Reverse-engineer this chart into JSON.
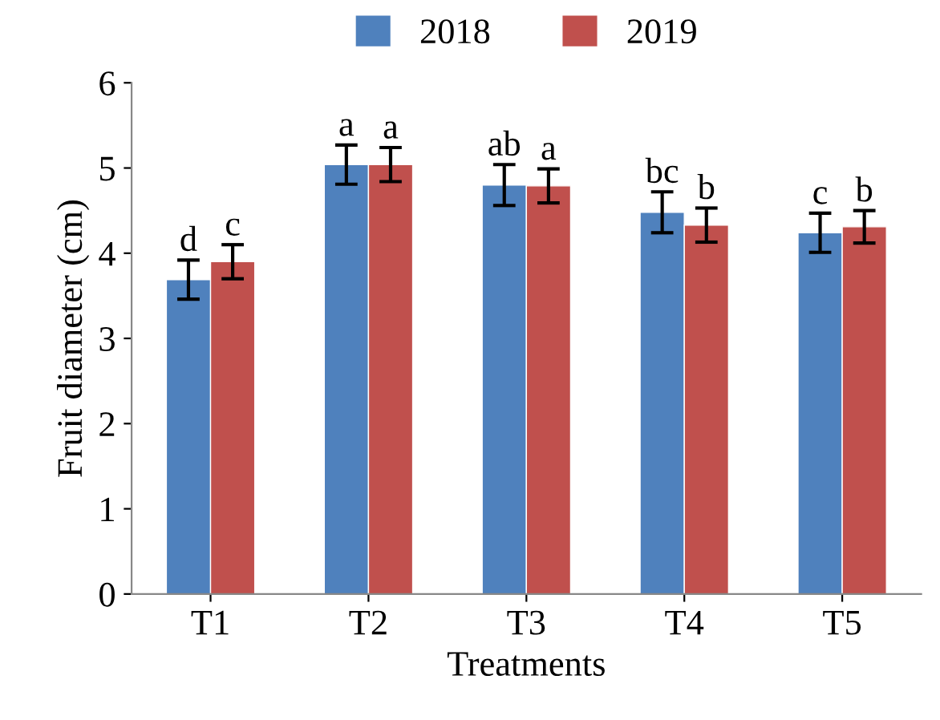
{
  "chart_data": {
    "type": "bar",
    "xlabel": "Treatments",
    "ylabel": "Fruit diameter (cm)",
    "categories": [
      "T1",
      "T2",
      "T3",
      "T4",
      "T5"
    ],
    "series": [
      {
        "name": "2018",
        "color": "#4f81bd",
        "values": [
          3.69,
          5.04,
          4.8,
          4.48,
          4.24
        ],
        "errors": [
          0.23,
          0.23,
          0.24,
          0.24,
          0.23
        ],
        "value_labels": [
          "d",
          "a",
          "ab",
          "bc",
          "c"
        ]
      },
      {
        "name": "2019",
        "color": "#c0504d",
        "values": [
          3.9,
          5.04,
          4.79,
          4.33,
          4.31
        ],
        "errors": [
          0.2,
          0.2,
          0.2,
          0.2,
          0.19
        ],
        "value_labels": [
          "c",
          "a",
          "a",
          "b",
          "b"
        ]
      }
    ],
    "ylim": [
      0,
      6
    ],
    "yticks": [
      0,
      1,
      2,
      3,
      4,
      5,
      6
    ],
    "grid": false,
    "legend": "top"
  }
}
